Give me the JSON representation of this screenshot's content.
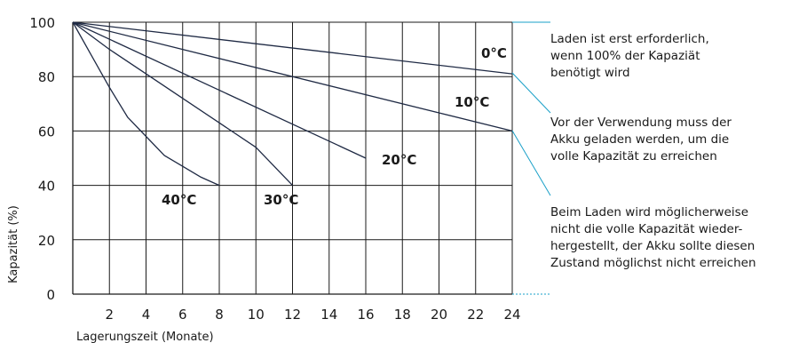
{
  "chart_data": {
    "type": "line",
    "xlabel": "Lagerungszeit (Monate)",
    "ylabel": "Kapazität (%)",
    "xlim": [
      0,
      24
    ],
    "ylim": [
      0,
      100
    ],
    "x_ticks": [
      2,
      4,
      6,
      8,
      10,
      12,
      14,
      16,
      18,
      20,
      22,
      24
    ],
    "y_ticks": [
      0,
      20,
      40,
      60,
      80,
      100
    ],
    "grid": true,
    "series": [
      {
        "name": "0°C",
        "points": [
          [
            0,
            100
          ],
          [
            24,
            81
          ]
        ]
      },
      {
        "name": "10°C",
        "points": [
          [
            0,
            100
          ],
          [
            24,
            60
          ]
        ]
      },
      {
        "name": "20°C",
        "points": [
          [
            0,
            100
          ],
          [
            16,
            50
          ]
        ]
      },
      {
        "name": "30°C",
        "points": [
          [
            0,
            100
          ],
          [
            2,
            90
          ],
          [
            4,
            81
          ],
          [
            6,
            72
          ],
          [
            8,
            63
          ],
          [
            10,
            54
          ],
          [
            12,
            40
          ]
        ]
      },
      {
        "name": "40°C",
        "points": [
          [
            0,
            100
          ],
          [
            1,
            88
          ],
          [
            2,
            76
          ],
          [
            3,
            65
          ],
          [
            4,
            58
          ],
          [
            5,
            51
          ],
          [
            6,
            47
          ],
          [
            7,
            43
          ],
          [
            8,
            40
          ]
        ]
      }
    ],
    "annotations": [
      {
        "lines": [
          "Laden ist erst erforderlich,",
          "wenn 100% der Kapaziät",
          "benötigt wird"
        ]
      },
      {
        "lines": [
          "Vor der Verwendung muss der",
          "Akku geladen werden, um die",
          "volle Kapazität zu erreichen"
        ]
      },
      {
        "lines": [
          "Beim Laden wird möglicherweise",
          "nicht die volle Kapazität wieder-",
          "hergestellt, der Akku sollte diesen",
          "Zustand möglichst nicht erreichen"
        ]
      }
    ],
    "colors": {
      "grid": "#1a1a1a",
      "series": "#1f2a44",
      "callout": "#1aa0c8"
    }
  }
}
